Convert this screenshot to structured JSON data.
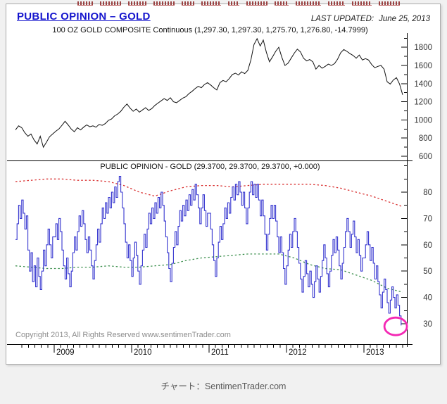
{
  "header": {
    "title": "PUBLIC OPINION – GOLD",
    "last_updated_label": "LAST UPDATED:",
    "last_updated_date": "June 25, 2013",
    "clipped_links": {
      "color": "#9a4343",
      "widths": [
        22,
        30,
        26,
        30,
        18,
        28,
        16,
        30,
        20,
        36,
        24,
        28,
        30
      ]
    }
  },
  "footer": {
    "copyright": "Copyright 2013, All Rights Reserved  www.sentimenTrader.com",
    "caption": "チャート：SentimenTrader.com"
  },
  "chart_data": [
    {
      "type": "line",
      "title": "100 OZ GOLD COMPOSITE Continuous (1,297.30, 1,297.30, 1,275.70, 1,276.80, -14.7999)",
      "x_axis": {
        "unit": "year",
        "range": [
          2008.46,
          2013.56
        ],
        "years": [
          2009,
          2010,
          2011,
          2012,
          2013
        ],
        "minor_tick": "monthly"
      },
      "y_axis": {
        "range": [
          600,
          1950
        ],
        "tick_minor": 100,
        "tick_labels": [
          600,
          800,
          1000,
          1200,
          1400,
          1600,
          1800
        ],
        "side": "right"
      },
      "grid": false,
      "series": [
        {
          "name": "gold-price",
          "color": "#111111",
          "style": "solid",
          "x0": 2008.5,
          "dx": 0.04,
          "y": [
            890,
            935,
            915,
            860,
            820,
            845,
            780,
            735,
            820,
            700,
            755,
            815,
            845,
            875,
            900,
            940,
            985,
            945,
            900,
            870,
            915,
            890,
            920,
            945,
            925,
            935,
            920,
            950,
            940,
            960,
            995,
            1010,
            1045,
            1065,
            1095,
            1140,
            1175,
            1130,
            1095,
            1120,
            1085,
            1110,
            1135,
            1105,
            1125,
            1160,
            1185,
            1210,
            1235,
            1215,
            1245,
            1200,
            1190,
            1215,
            1240,
            1255,
            1290,
            1315,
            1345,
            1370,
            1355,
            1390,
            1410,
            1385,
            1355,
            1330,
            1410,
            1435,
            1420,
            1455,
            1500,
            1515,
            1495,
            1530,
            1510,
            1545,
            1660,
            1830,
            1895,
            1815,
            1880,
            1745,
            1640,
            1695,
            1755,
            1800,
            1690,
            1600,
            1625,
            1680,
            1735,
            1780,
            1750,
            1680,
            1650,
            1665,
            1640,
            1560,
            1600,
            1570,
            1590,
            1615,
            1600,
            1620,
            1670,
            1740,
            1775,
            1755,
            1730,
            1710,
            1680,
            1715,
            1660,
            1675,
            1660,
            1610,
            1575,
            1590,
            1600,
            1560,
            1420,
            1395,
            1440,
            1465,
            1395,
            1277
          ]
        }
      ]
    },
    {
      "type": "line",
      "title": "PUBLIC OPINION - GOLD (29.3700, 29.3700, 29.3700, +0.000)",
      "x_axis": {
        "unit": "year",
        "range": [
          2008.46,
          2013.56
        ],
        "years": [
          2009,
          2010,
          2011,
          2012,
          2013
        ],
        "minor_tick": "monthly"
      },
      "y_axis": {
        "range": [
          27,
          90
        ],
        "tick_minor": 5,
        "tick_labels": [
          30,
          40,
          50,
          60,
          70,
          80
        ],
        "side": "right"
      },
      "grid": false,
      "series": [
        {
          "name": "public-opinion",
          "color": "#3535cf",
          "style": "step",
          "x0": 2008.5,
          "dx": 0.02,
          "y": [
            62,
            68,
            75,
            70,
            77,
            72,
            66,
            71,
            58,
            50,
            57,
            46,
            52,
            44,
            55,
            48,
            43,
            50,
            58,
            52,
            60,
            66,
            60,
            55,
            63,
            63,
            68,
            62,
            70,
            65,
            58,
            52,
            47,
            55,
            49,
            44,
            50,
            57,
            63,
            58,
            65,
            71,
            67,
            73,
            68,
            62,
            57,
            63,
            58,
            52,
            47,
            54,
            60,
            66,
            61,
            68,
            74,
            70,
            76,
            72,
            78,
            74,
            80,
            76,
            82,
            78,
            84,
            86,
            80,
            74,
            68,
            61,
            55,
            60,
            54,
            48,
            55,
            61,
            56,
            50,
            45,
            52,
            58,
            64,
            59,
            66,
            72,
            68,
            74,
            70,
            76,
            72,
            78,
            74,
            80,
            75,
            69,
            63,
            57,
            51,
            46,
            53,
            59,
            65,
            60,
            67,
            73,
            69,
            75,
            71,
            77,
            73,
            79,
            75,
            81,
            77,
            83,
            79,
            74,
            68,
            74,
            79,
            73,
            67,
            72,
            72,
            66,
            60,
            54,
            48,
            55,
            61,
            67,
            62,
            68,
            74,
            70,
            76,
            72,
            78,
            82,
            77,
            83,
            79,
            84,
            80,
            75,
            80,
            74,
            68,
            74,
            80,
            84,
            79,
            83,
            78,
            83,
            77,
            71,
            77,
            71,
            64,
            58,
            64,
            70,
            75,
            70,
            75,
            69,
            63,
            57,
            63,
            57,
            51,
            45,
            52,
            58,
            64,
            59,
            65,
            70,
            65,
            59,
            53,
            47,
            42,
            48,
            54,
            49,
            44,
            50,
            45,
            40,
            46,
            52,
            47,
            42,
            48,
            54,
            60,
            55,
            49,
            44,
            50,
            56,
            62,
            57,
            63,
            58,
            52,
            47,
            53,
            59,
            65,
            70,
            65,
            59,
            64,
            69,
            63,
            57,
            62,
            56,
            50,
            55,
            55,
            60,
            65,
            60,
            54,
            59,
            53,
            47,
            52,
            46,
            41,
            36,
            42,
            47,
            43,
            38,
            34,
            39,
            44,
            40,
            36,
            41,
            37,
            33,
            29.37
          ]
        },
        {
          "name": "upper-band",
          "color": "#d93030",
          "style": "dotted",
          "x0": 2008.5,
          "dx": 0.2,
          "y": [
            84,
            84.5,
            85,
            85,
            84.5,
            84.5,
            84,
            82.5,
            80,
            78.5,
            80.5,
            82,
            82.5,
            82.5,
            82,
            82.5,
            83,
            83,
            83,
            83,
            82.5,
            81.5,
            80,
            78.5,
            76.5,
            74.5
          ]
        },
        {
          "name": "lower-band",
          "color": "#3f9150",
          "style": "dotted",
          "x0": 2008.5,
          "dx": 0.2,
          "y": [
            52,
            51.5,
            51,
            51,
            51.5,
            51.5,
            52,
            51.5,
            51.5,
            52,
            52.5,
            54,
            55,
            55.5,
            56,
            56.5,
            56.5,
            56.5,
            55,
            52.5,
            51,
            50.5,
            48.5,
            46.5,
            43.5,
            42
          ]
        }
      ],
      "highlight": {
        "shape": "ellipse",
        "x_year": 2013.41,
        "value": 29.0,
        "color": "#f428b4"
      }
    }
  ]
}
